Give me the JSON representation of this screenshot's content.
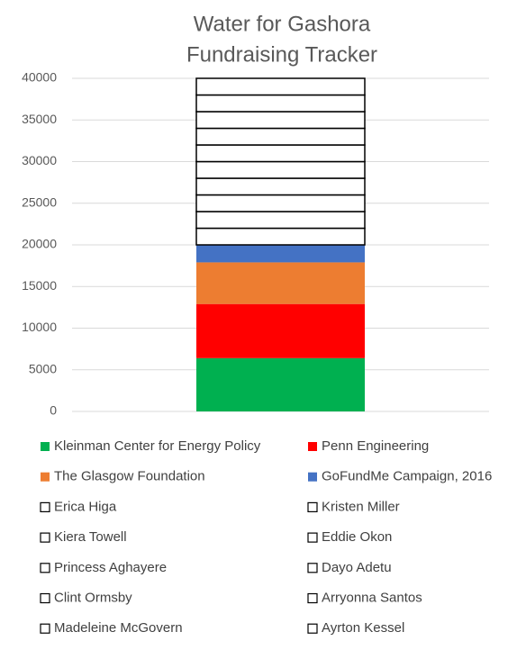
{
  "chart_data": {
    "type": "stacked_bar",
    "title": [
      "Water for Gashora",
      "Fundraising Tracker"
    ],
    "categories": [
      null
    ],
    "series": [
      {
        "name": "Kleinman Center for Energy Policy",
        "color": "#00b050",
        "values": [
          6400
        ]
      },
      {
        "name": "Penn Engineering",
        "color": "#ff0000",
        "values": [
          6500
        ]
      },
      {
        "name": "The Glasgow Foundation",
        "color": "#ed7d31",
        "values": [
          5000
        ]
      },
      {
        "name": "GoFundMe Campaign, 2016",
        "color": "#4472c4",
        "values": [
          2100
        ]
      },
      {
        "name": "Erica Higa",
        "color": "#ffffff",
        "values": [
          2000
        ]
      },
      {
        "name": "Kristen Miller",
        "color": "#ffffff",
        "values": [
          2000
        ]
      },
      {
        "name": "Kiera Towell",
        "color": "#ffffff",
        "values": [
          2000
        ]
      },
      {
        "name": "Eddie Okon",
        "color": "#ffffff",
        "values": [
          2000
        ]
      },
      {
        "name": "Princess Aghayere",
        "color": "#ffffff",
        "values": [
          2000
        ]
      },
      {
        "name": "Dayo Adetu",
        "color": "#ffffff",
        "values": [
          2000
        ]
      },
      {
        "name": "Clint Ormsby",
        "color": "#ffffff",
        "values": [
          2000
        ]
      },
      {
        "name": "Arryonna Santos",
        "color": "#ffffff",
        "values": [
          2000
        ]
      },
      {
        "name": "Madeleine McGovern",
        "color": "#ffffff",
        "values": [
          2000
        ]
      },
      {
        "name": "Ayrton Kessel",
        "color": "#ffffff",
        "values": [
          2000
        ]
      }
    ],
    "ylim": [
      0,
      40000
    ],
    "yticks": [
      0,
      5000,
      10000,
      15000,
      20000,
      25000,
      30000,
      35000,
      40000
    ],
    "grid": true,
    "legend": "bottom"
  }
}
